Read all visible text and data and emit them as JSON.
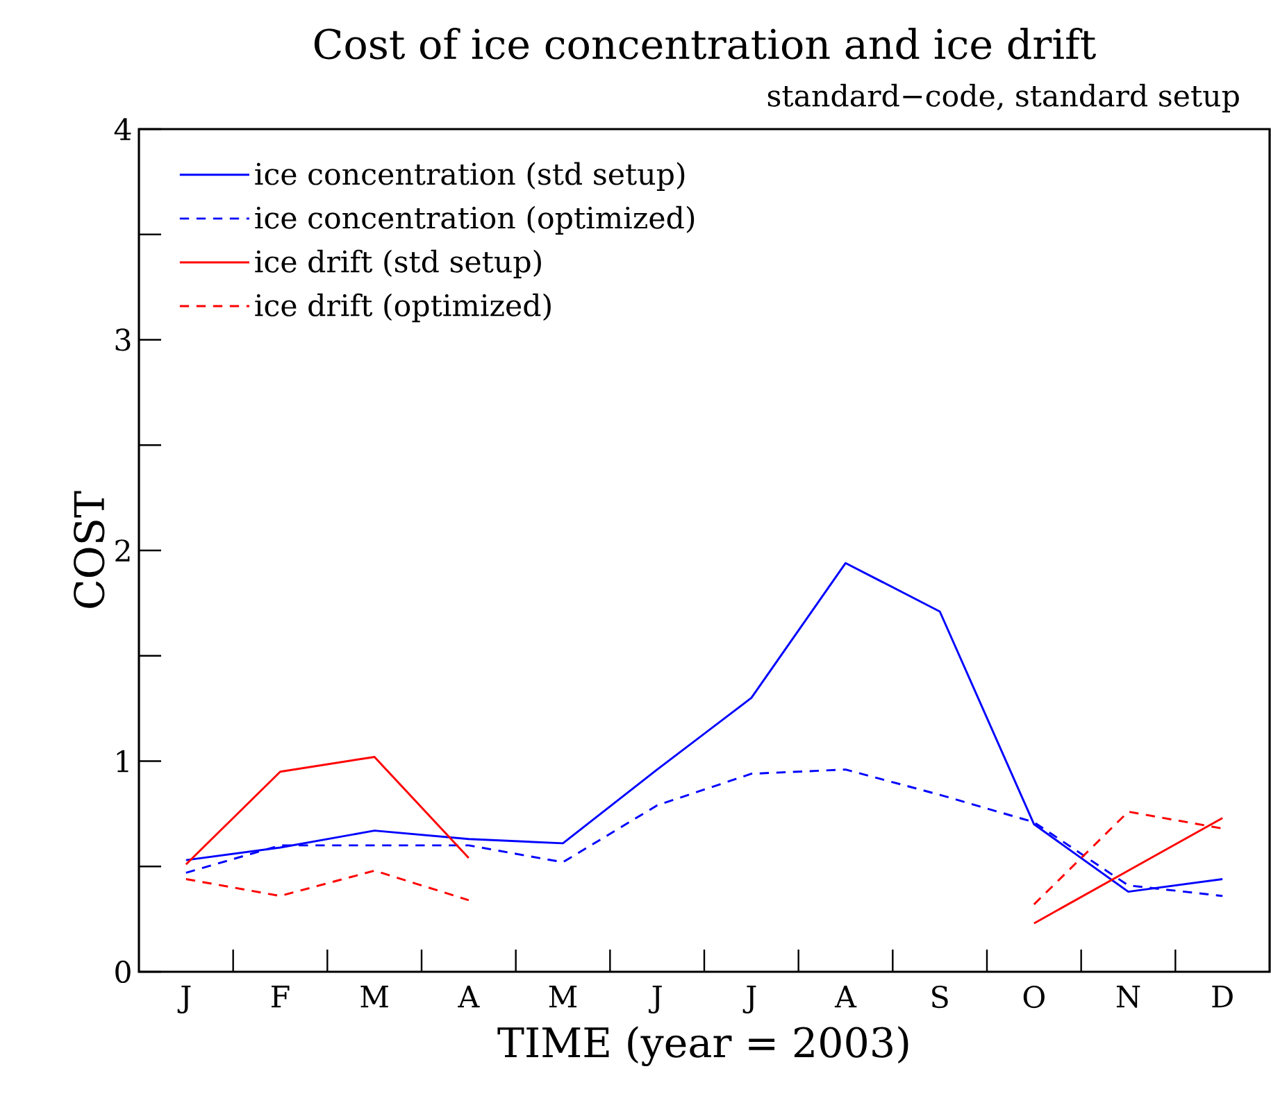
{
  "chart_data": {
    "type": "line",
    "title": "Cost of ice concentration and ice drift",
    "subtitle": "standard−code, standard setup",
    "xlabel": "TIME (year = 2003)",
    "ylabel": "COST",
    "categories": [
      "J",
      "F",
      "M",
      "A",
      "M",
      "J",
      "J",
      "A",
      "S",
      "O",
      "N",
      "D"
    ],
    "ylim": [
      0,
      4
    ],
    "yticks": [
      0,
      {
        "value": 0.5,
        "label": null
      },
      1,
      {
        "value": 1.5,
        "label": null
      },
      2,
      {
        "value": 2.5,
        "label": null
      },
      3,
      {
        "value": 3.5,
        "label": null
      },
      4
    ],
    "grid": false,
    "legend": "top left",
    "marker": "none",
    "series": [
      {
        "name": "ice concentration (std setup)",
        "color": "#0000ff",
        "line_style": "solid",
        "values": [
          0.53,
          0.59,
          0.67,
          0.63,
          0.61,
          0.96,
          1.3,
          1.94,
          1.71,
          0.7,
          0.38,
          0.44
        ]
      },
      {
        "name": "ice concentration (optimized)",
        "color": "#0000ff",
        "line_style": "dashed",
        "values": [
          0.47,
          0.6,
          0.6,
          0.6,
          0.52,
          0.79,
          0.94,
          0.96,
          0.84,
          0.71,
          0.41,
          0.36
        ]
      },
      {
        "name": "ice drift (std setup)",
        "color": "#ff0000",
        "line_style": "solid",
        "values": [
          0.51,
          0.95,
          1.02,
          0.54,
          null,
          null,
          null,
          null,
          null,
          0.23,
          0.48,
          0.73
        ]
      },
      {
        "name": "ice drift (optimized)",
        "color": "#ff0000",
        "line_style": "dashed",
        "values": [
          0.44,
          0.36,
          0.48,
          0.34,
          null,
          null,
          null,
          null,
          null,
          0.32,
          0.76,
          0.68
        ]
      }
    ]
  }
}
